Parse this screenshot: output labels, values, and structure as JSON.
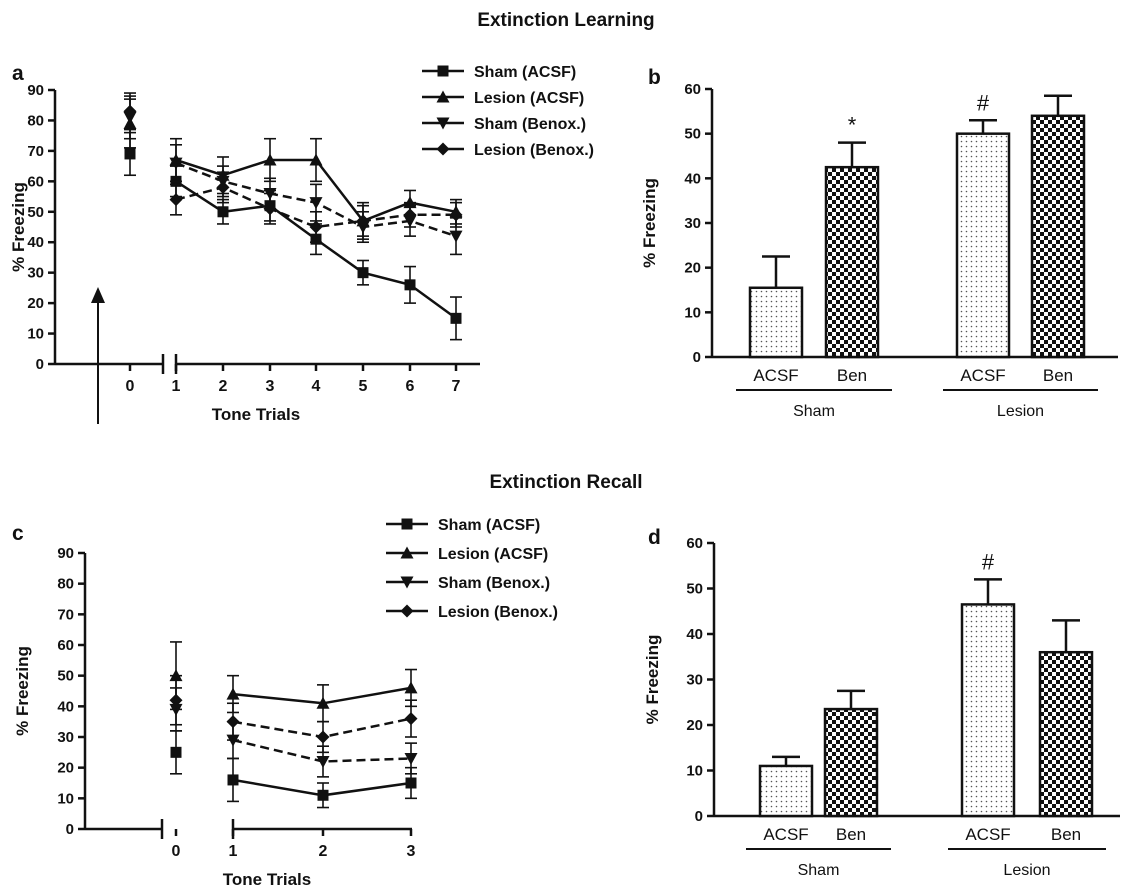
{
  "titles": {
    "top": "Extinction Learning",
    "bottom": "Extinction Recall"
  },
  "chart_data": [
    {
      "panel": "a",
      "type": "line",
      "xlabel": "Tone Trials",
      "ylabel": "% Freezing",
      "ylim": [
        0,
        90
      ],
      "yticks": [
        0,
        10,
        20,
        30,
        40,
        50,
        60,
        70,
        80,
        90
      ],
      "xticks": [
        "0",
        "1",
        "2",
        "3",
        "4",
        "5",
        "6",
        "7"
      ],
      "legend_position": "top-center",
      "series": [
        {
          "name": "Sham (ACSF)",
          "marker": "square",
          "dash": "solid",
          "baseline": {
            "x": 0,
            "y": 69,
            "err": 7
          },
          "x": [
            1,
            2,
            3,
            4,
            5,
            6,
            7
          ],
          "y": [
            60,
            50,
            52,
            41,
            30,
            26,
            15
          ],
          "err": [
            5,
            4,
            5,
            5,
            4,
            6,
            7
          ]
        },
        {
          "name": "Lesion (ACSF)",
          "marker": "triangle-up",
          "dash": "solid",
          "baseline": {
            "x": 0,
            "y": 79,
            "err": 8
          },
          "x": [
            1,
            2,
            3,
            4,
            5,
            6,
            7
          ],
          "y": [
            67,
            62,
            67,
            67,
            47,
            53,
            50
          ],
          "err": [
            7,
            6,
            7,
            7,
            6,
            4,
            4
          ]
        },
        {
          "name": "Sham (Benox.)",
          "marker": "triangle-down",
          "dash": "dashed",
          "baseline": {
            "x": 0,
            "y": 81,
            "err": 7
          },
          "x": [
            1,
            2,
            3,
            4,
            5,
            6,
            7
          ],
          "y": [
            66,
            60,
            56,
            53,
            45,
            47,
            42
          ],
          "err": [
            6,
            5,
            5,
            6,
            5,
            5,
            6
          ]
        },
        {
          "name": "Lesion (Benox.)",
          "marker": "diamond",
          "dash": "dashed",
          "baseline": {
            "x": 0,
            "y": 83,
            "err": 6
          },
          "x": [
            1,
            2,
            3,
            4,
            5,
            6,
            7
          ],
          "y": [
            54,
            58,
            51,
            45,
            47,
            49,
            49
          ],
          "err": [
            5,
            5,
            5,
            5,
            5,
            4,
            4
          ]
        }
      ]
    },
    {
      "panel": "b",
      "type": "bar",
      "ylabel": "% Freezing",
      "ylim": [
        0,
        60
      ],
      "yticks": [
        0,
        10,
        20,
        30,
        40,
        50,
        60
      ],
      "categories": [
        "ACSF",
        "Ben",
        "ACSF",
        "Ben"
      ],
      "groups": [
        {
          "label": "Sham",
          "members": [
            0,
            1
          ]
        },
        {
          "label": "Lesion",
          "members": [
            2,
            3
          ]
        }
      ],
      "values": [
        15.5,
        42.5,
        50,
        54
      ],
      "errors": [
        7,
        5.5,
        3,
        4.5
      ],
      "fills": [
        "dotted",
        "checkered",
        "dotted",
        "checkered"
      ],
      "annotations": [
        "",
        "*",
        "#",
        ""
      ]
    },
    {
      "panel": "c",
      "type": "line",
      "xlabel": "Tone Trials",
      "ylabel": "% Freezing",
      "ylim": [
        0,
        90
      ],
      "yticks": [
        0,
        10,
        20,
        30,
        40,
        50,
        60,
        70,
        80,
        90
      ],
      "xticks": [
        "0",
        "1",
        "2",
        "3"
      ],
      "legend_position": "top-center",
      "series": [
        {
          "name": "Sham (ACSF)",
          "marker": "square",
          "dash": "solid",
          "baseline": {
            "x": 0,
            "y": 25,
            "err": 7
          },
          "x": [
            1,
            2,
            3
          ],
          "y": [
            16,
            11,
            15
          ],
          "err": [
            7,
            4,
            5
          ]
        },
        {
          "name": "Lesion (ACSF)",
          "marker": "triangle-up",
          "dash": "solid",
          "baseline": {
            "x": 0,
            "y": 50,
            "err": 11
          },
          "x": [
            1,
            2,
            3
          ],
          "y": [
            44,
            41,
            46
          ],
          "err": [
            6,
            6,
            6
          ]
        },
        {
          "name": "Sham (Benox.)",
          "marker": "triangle-down",
          "dash": "dashed",
          "baseline": {
            "x": 0,
            "y": 39,
            "err": 7
          },
          "x": [
            1,
            2,
            3
          ],
          "y": [
            29,
            22,
            23
          ],
          "err": [
            6,
            5,
            5
          ]
        },
        {
          "name": "Lesion (Benox.)",
          "marker": "diamond",
          "dash": "dashed",
          "baseline": {
            "x": 0,
            "y": 42,
            "err": 8
          },
          "x": [
            1,
            2,
            3
          ],
          "y": [
            35,
            30,
            36
          ],
          "err": [
            6,
            5,
            6
          ]
        }
      ]
    },
    {
      "panel": "d",
      "type": "bar",
      "ylabel": "% Freezing",
      "ylim": [
        0,
        60
      ],
      "yticks": [
        0,
        10,
        20,
        30,
        40,
        50,
        60
      ],
      "categories": [
        "ACSF",
        "Ben",
        "ACSF",
        "Ben"
      ],
      "groups": [
        {
          "label": "Sham",
          "members": [
            0,
            1
          ]
        },
        {
          "label": "Lesion",
          "members": [
            2,
            3
          ]
        }
      ],
      "values": [
        11,
        23.5,
        46.5,
        36
      ],
      "errors": [
        2,
        4,
        5.5,
        7
      ],
      "fills": [
        "dotted",
        "checkered",
        "dotted",
        "checkered"
      ],
      "annotations": [
        "",
        "",
        "#",
        ""
      ]
    }
  ]
}
